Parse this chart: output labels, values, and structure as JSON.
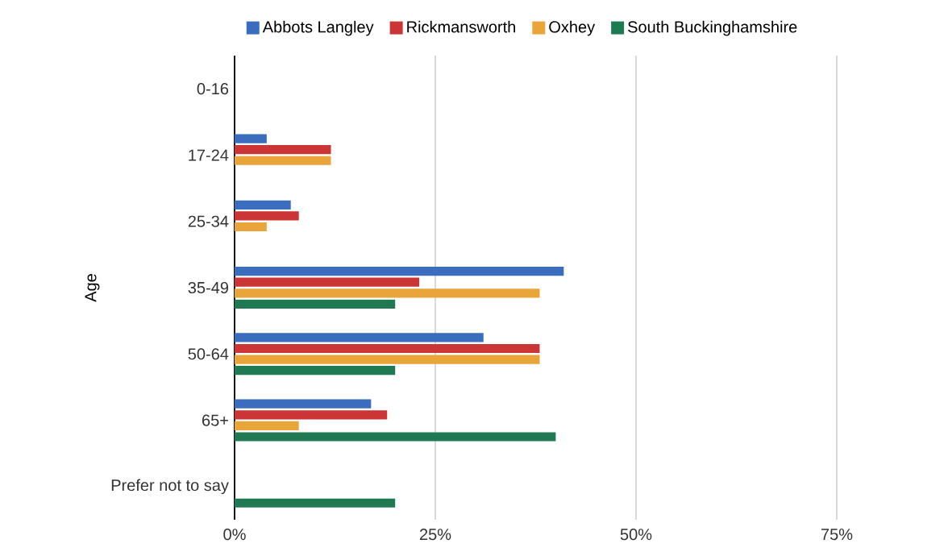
{
  "chart_data": {
    "type": "bar",
    "orientation": "horizontal",
    "ylabel": "Age",
    "categories": [
      "0-16",
      "17-24",
      "25-34",
      "35-49",
      "50-64",
      "65+",
      "Prefer not to say"
    ],
    "series": [
      {
        "name": "Abbots Langley",
        "color": "#3b6dbf",
        "values": [
          null,
          4,
          7,
          41,
          31,
          17,
          null
        ]
      },
      {
        "name": "Rickmansworth",
        "color": "#cc3535",
        "values": [
          null,
          12,
          8,
          23,
          38,
          19,
          null
        ]
      },
      {
        "name": "Oxhey",
        "color": "#e9a53a",
        "values": [
          null,
          12,
          4,
          38,
          38,
          8,
          null
        ]
      },
      {
        "name": "South Buckinghamshire",
        "color": "#1f7a54",
        "values": [
          null,
          null,
          null,
          20,
          20,
          40,
          20
        ]
      }
    ],
    "xlim": [
      0,
      75
    ],
    "xticks": [
      {
        "value": 0,
        "label": "0%"
      },
      {
        "value": 25,
        "label": "25%"
      },
      {
        "value": 50,
        "label": "50%"
      },
      {
        "value": 75,
        "label": "75%"
      }
    ],
    "grid": "x",
    "legend": "top"
  }
}
